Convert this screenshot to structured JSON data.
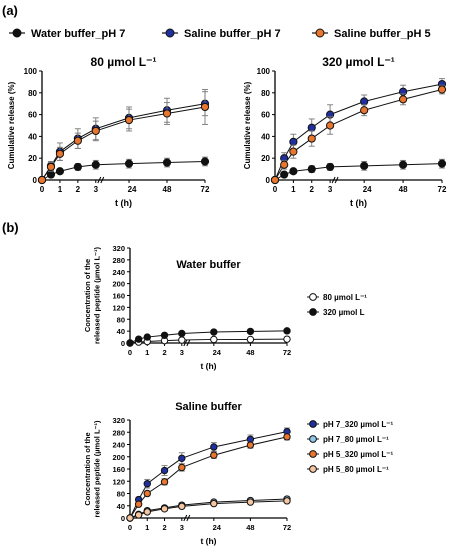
{
  "panel_a": {
    "label": "(a)",
    "legend": [
      {
        "name": "Water buffer_pH 7",
        "color": "#111111"
      },
      {
        "name": "Saline buffer_pH 7",
        "color": "#1f2f9e"
      },
      {
        "name": "Saline buffer_pH 5",
        "color": "#e8762e"
      }
    ]
  },
  "panel_b": {
    "label": "(b)",
    "water_legend": [
      "80 µmol L⁻¹",
      "320 µmol L"
    ],
    "saline_legend": [
      "pH 7_320 µmol L⁻¹",
      "pH 7_80 µmol L⁻¹",
      "pH 5_320 µmol L⁻¹",
      "pH 5_80 µmol L⁻¹"
    ]
  },
  "chart_data": [
    {
      "type": "scatter",
      "title": "80 µmol L⁻¹",
      "xlabel": "t (h)",
      "ylabel": "Cumulative release (%)",
      "xticks": [
        "0",
        "1",
        "2",
        "3",
        "24",
        "48",
        "72"
      ],
      "yticks": [
        "0",
        "20",
        "40",
        "60",
        "80",
        "100"
      ],
      "ylim": [
        0,
        100
      ],
      "x": [
        0,
        0.5,
        1,
        2,
        3,
        24,
        48,
        72
      ],
      "series": [
        {
          "name": "Water buffer_pH 7",
          "color": "#111111",
          "values": [
            0,
            5,
            8,
            12,
            14,
            15,
            16,
            17
          ],
          "errors": [
            0,
            1,
            2,
            3,
            4,
            4,
            4,
            4
          ]
        },
        {
          "name": "Saline buffer_pH 7",
          "color": "#1f2f9e",
          "values": [
            0,
            13,
            26,
            38,
            47,
            57,
            64,
            70
          ],
          "errors": [
            0,
            4,
            8,
            9,
            10,
            10,
            11,
            11
          ]
        },
        {
          "name": "Saline buffer_pH 5",
          "color": "#e8762e",
          "values": [
            0,
            12,
            24,
            36,
            45,
            55,
            61,
            67
          ],
          "errors": [
            0,
            4,
            6,
            7,
            9,
            10,
            10,
            16
          ]
        }
      ]
    },
    {
      "type": "scatter",
      "title": "320 µmol L⁻¹",
      "xlabel": "t (h)",
      "ylabel": "Cumulative release (%)",
      "xticks": [
        "0",
        "1",
        "2",
        "3",
        "24",
        "48",
        "72"
      ],
      "yticks": [
        "0",
        "20",
        "40",
        "60",
        "80",
        "100"
      ],
      "ylim": [
        0,
        100
      ],
      "x": [
        0,
        0.5,
        1,
        2,
        3,
        24,
        48,
        72
      ],
      "series": [
        {
          "name": "Water buffer_pH 7",
          "color": "#111111",
          "values": [
            0,
            5,
            8,
            10,
            12,
            13,
            14,
            15
          ],
          "errors": [
            0,
            2,
            2,
            3,
            3,
            4,
            4,
            4
          ]
        },
        {
          "name": "Saline buffer_pH 7",
          "color": "#1f2f9e",
          "values": [
            0,
            20,
            35,
            48,
            60,
            72,
            81,
            88
          ],
          "errors": [
            0,
            5,
            7,
            8,
            9,
            6,
            6,
            5
          ]
        },
        {
          "name": "Saline buffer_pH 5",
          "color": "#e8762e",
          "values": [
            0,
            14,
            26,
            38,
            50,
            64,
            74,
            83
          ],
          "errors": [
            0,
            4,
            6,
            7,
            8,
            5,
            5,
            4
          ]
        }
      ]
    },
    {
      "type": "scatter",
      "title": "Water buffer",
      "xlabel": "t (h)",
      "ylabel": "Concentration of the released peptide (µmol L⁻¹)",
      "xticks": [
        "0",
        "1",
        "2",
        "3",
        "24",
        "48",
        "72"
      ],
      "yticks": [
        "0",
        "40",
        "80",
        "120",
        "160",
        "200",
        "240",
        "280",
        "320"
      ],
      "ylim": [
        0,
        320
      ],
      "x": [
        0,
        0.5,
        1,
        2,
        3,
        24,
        48,
        72
      ],
      "series": [
        {
          "name": "80 µmol L⁻¹",
          "color": "#ffffff",
          "values": [
            0,
            3,
            5,
            8,
            10,
            12,
            12,
            13
          ],
          "errors": [
            0,
            1,
            1,
            1,
            1,
            1,
            1,
            1
          ]
        },
        {
          "name": "320 µmol L",
          "color": "#111111",
          "values": [
            0,
            13,
            20,
            26,
            32,
            37,
            39,
            41
          ],
          "errors": [
            0,
            2,
            2,
            2,
            2,
            2,
            2,
            2
          ]
        }
      ]
    },
    {
      "type": "scatter",
      "title": "Saline buffer",
      "xlabel": "t (h)",
      "ylabel": "Concentration of the released peptide (µmol L⁻¹)",
      "xticks": [
        "0",
        "1",
        "2",
        "3",
        "24",
        "48",
        "72"
      ],
      "yticks": [
        "0",
        "40",
        "80",
        "120",
        "160",
        "200",
        "240",
        "280",
        "320"
      ],
      "ylim": [
        0,
        320
      ],
      "x": [
        0,
        0.5,
        1,
        2,
        3,
        24,
        48,
        72
      ],
      "series": [
        {
          "name": "pH 7_320 µmol L⁻¹",
          "color": "#1f2f9e",
          "values": [
            0,
            60,
            112,
            155,
            195,
            232,
            257,
            282
          ],
          "errors": [
            0,
            8,
            14,
            16,
            18,
            14,
            14,
            12
          ]
        },
        {
          "name": "pH 7_80 µmol L⁻¹",
          "color": "#8fc8ea",
          "values": [
            0,
            12,
            24,
            33,
            42,
            52,
            57,
            62
          ],
          "errors": [
            0,
            3,
            4,
            5,
            6,
            6,
            6,
            6
          ]
        },
        {
          "name": "pH 5_320 µmol L⁻¹",
          "color": "#e8762e",
          "values": [
            0,
            45,
            80,
            118,
            165,
            205,
            238,
            265
          ],
          "errors": [
            0,
            6,
            8,
            10,
            12,
            10,
            10,
            10
          ]
        },
        {
          "name": "pH 5_80 µmol L⁻¹",
          "color": "#f5c6a0",
          "values": [
            0,
            10,
            20,
            30,
            38,
            47,
            52,
            56
          ],
          "errors": [
            0,
            3,
            3,
            4,
            5,
            5,
            5,
            5
          ]
        }
      ]
    }
  ]
}
